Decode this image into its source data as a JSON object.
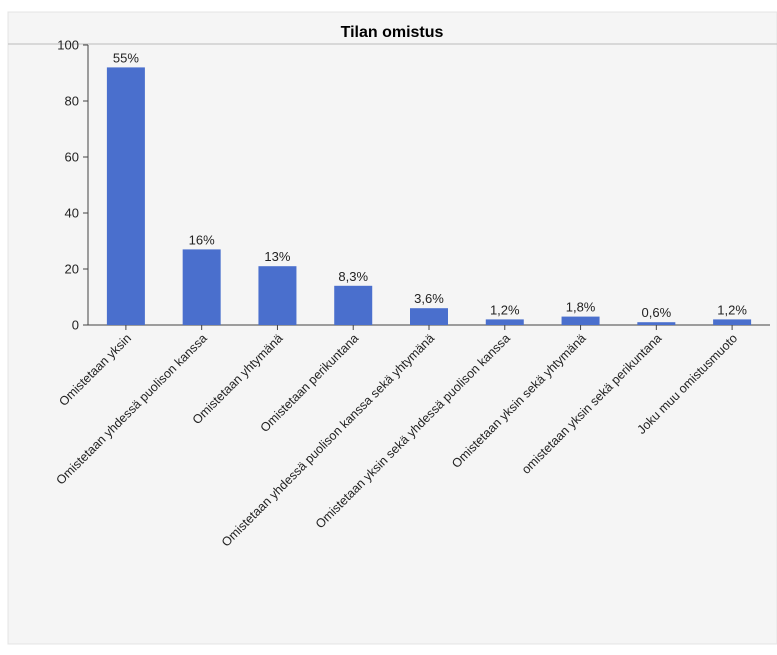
{
  "chart_data": {
    "type": "bar",
    "title": "Tilan omistus",
    "xlabel": "",
    "ylabel": "",
    "ylim": [
      0,
      100
    ],
    "yticks": [
      0,
      20,
      40,
      60,
      80,
      100
    ],
    "categories": [
      "Omistetaan yksin",
      "Omistetaan yhdessä puolison kanssa",
      "Omistetaan yhtymänä",
      "Omistetaan perikuntana",
      "Omistetaan yhdessä puolison kanssa sekä yhtymänä",
      "Omistetaan yksin sekä yhdessä puolison kanssa",
      "Omistetaan yksin sekä yhtymänä",
      "omistetaan yksin sekä perikuntana",
      "Joku muu omistusmuoto"
    ],
    "values": [
      92,
      27,
      21,
      14,
      6,
      2,
      3,
      1,
      2
    ],
    "data_labels": [
      "55%",
      "16%",
      "13%",
      "8,3%",
      "3,6%",
      "1,2%",
      "1,8%",
      "0,6%",
      "1,2%"
    ],
    "grid": false,
    "legend": "none",
    "bar_color": "#4a6fcd",
    "plot_background": "#f5f5f5"
  }
}
